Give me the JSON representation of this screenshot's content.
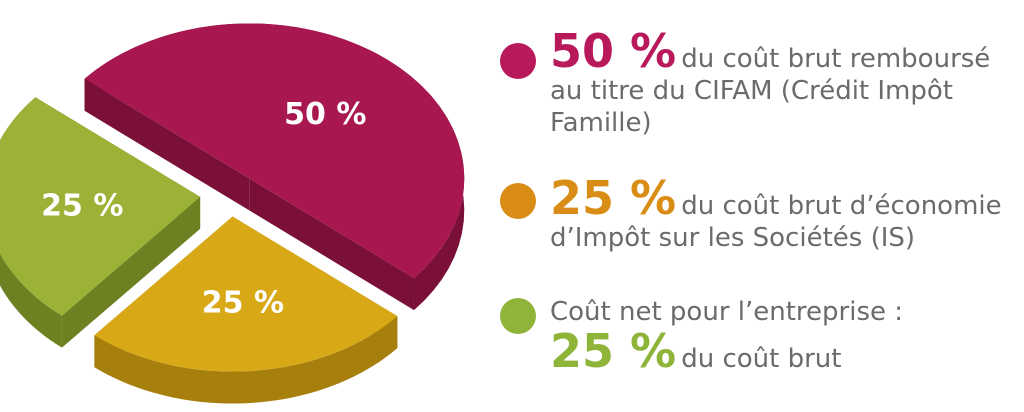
{
  "chart_data": {
    "type": "pie",
    "slices": [
      {
        "label": "50 %",
        "value": 50,
        "color": "#a8174f",
        "side": "#7a0f38"
      },
      {
        "label": "25 %",
        "value": 25,
        "color": "#d8a816",
        "side": "#a67f0c"
      },
      {
        "label": "25 %",
        "value": 25,
        "color": "#9bb237",
        "side": "#6d8122"
      }
    ]
  },
  "legend": {
    "items": [
      {
        "big": "50 %",
        "line1": "du coût brut remboursé",
        "line2": "au titre du CIFAM (Crédit Impôt",
        "line3": "Famille)",
        "color": "#b8195a"
      },
      {
        "big": "25 %",
        "line1": "du coût brut d’économie",
        "line2": "d’Impôt sur les Sociétés (IS)",
        "color": "#d98d16"
      },
      {
        "prefix": "Coût net pour l’entreprise :",
        "big": "25 %",
        "line1": "du coût brut",
        "color": "#8fb43a"
      }
    ]
  }
}
